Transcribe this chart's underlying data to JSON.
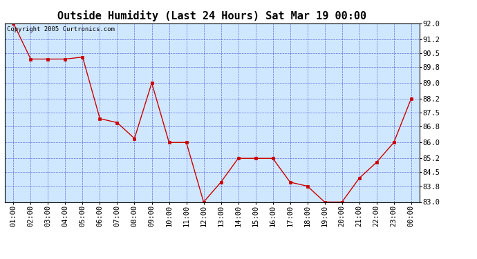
{
  "title": "Outside Humidity (Last 24 Hours) Sat Mar 19 00:00",
  "copyright": "Copyright 2005 Curtronics.com",
  "x_labels": [
    "01:00",
    "02:00",
    "03:00",
    "04:00",
    "05:00",
    "06:00",
    "07:00",
    "08:00",
    "09:00",
    "10:00",
    "11:00",
    "12:00",
    "13:00",
    "14:00",
    "15:00",
    "16:00",
    "17:00",
    "18:00",
    "19:00",
    "20:00",
    "21:00",
    "22:00",
    "23:00",
    "00:00"
  ],
  "y_values": [
    92.0,
    90.2,
    90.2,
    90.2,
    90.3,
    87.2,
    87.0,
    86.2,
    89.0,
    86.0,
    86.0,
    83.0,
    84.0,
    85.2,
    85.2,
    85.2,
    84.0,
    83.8,
    83.0,
    83.0,
    84.2,
    85.0,
    86.0,
    88.2
  ],
  "line_color": "#cc0000",
  "marker_color": "#cc0000",
  "fig_bg_color": "#ffffff",
  "plot_bg_color": "#d0e8ff",
  "grid_color": "#3333cc",
  "title_color": "#000000",
  "axis_label_color": "#000000",
  "border_color": "#000000",
  "y_min": 83.0,
  "y_max": 92.0,
  "y_ticks": [
    83.0,
    83.8,
    84.5,
    85.2,
    86.0,
    86.8,
    87.5,
    88.2,
    89.0,
    89.8,
    90.5,
    91.2,
    92.0
  ],
  "title_fontsize": 11,
  "tick_fontsize": 7.5,
  "copyright_fontsize": 6.5
}
